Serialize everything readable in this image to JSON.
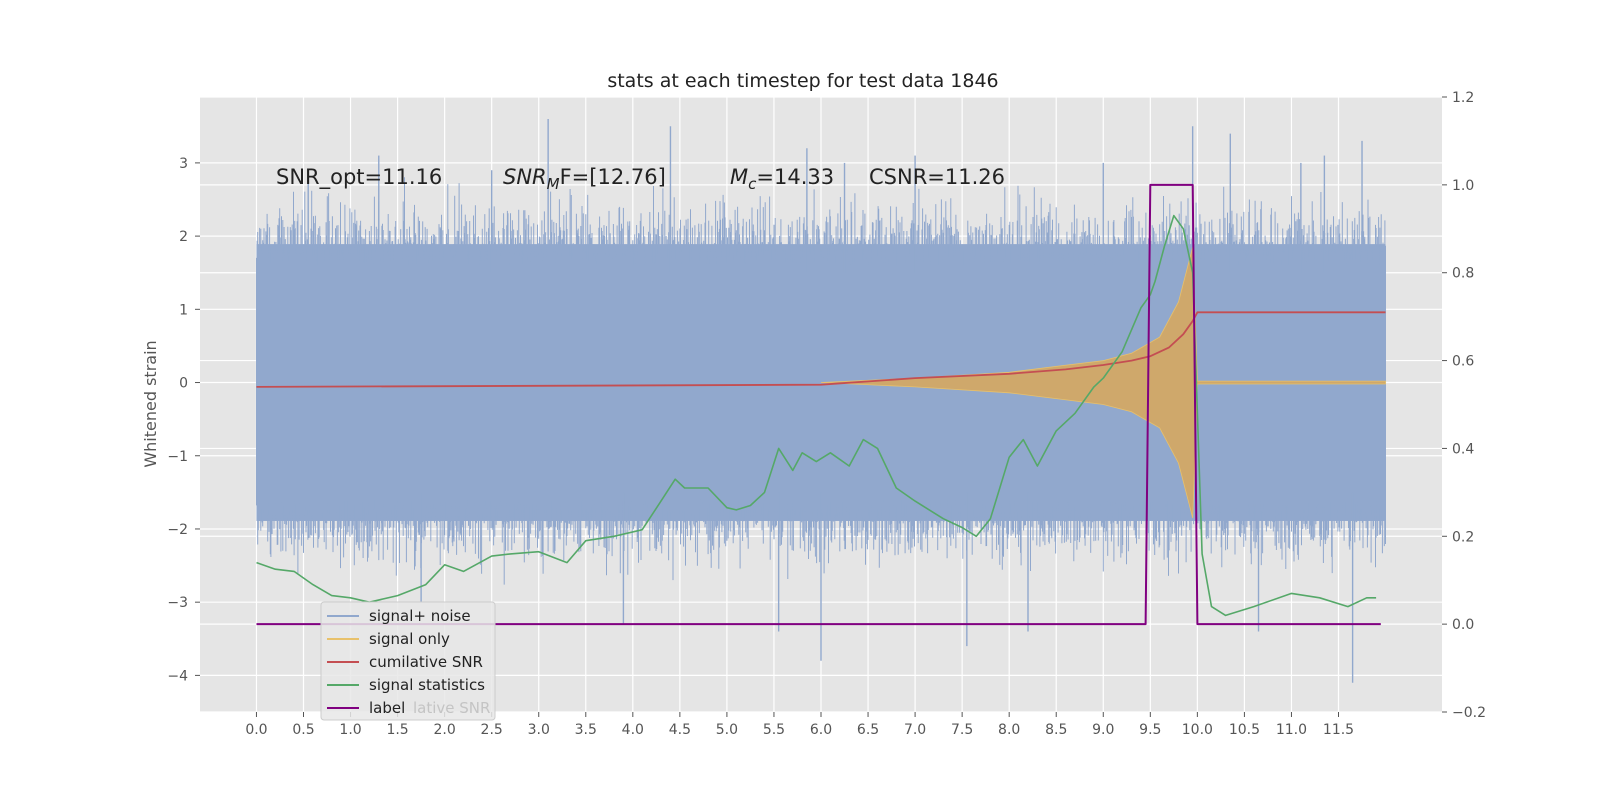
{
  "chart_data": {
    "type": "line",
    "title": "stats at each timestep for test data 1846",
    "ylabel": "Whitened strain",
    "xlabel": "",
    "xlim": [
      -0.6,
      12.6
    ],
    "ylim": [
      -4.5,
      3.9
    ],
    "y2lim": [
      -0.2,
      1.2
    ],
    "grid": true,
    "legend_position": "lower-left",
    "x_ticks": [
      "0.0",
      "0.5",
      "1.0",
      "1.5",
      "2.0",
      "2.5",
      "3.0",
      "3.5",
      "4.0",
      "4.5",
      "5.0",
      "5.5",
      "6.0",
      "6.5",
      "7.0",
      "7.5",
      "8.0",
      "8.5",
      "9.0",
      "9.5",
      "10.0",
      "10.5",
      "11.0",
      "11.5"
    ],
    "y_ticks": [
      "3",
      "2",
      "1",
      "0",
      "−1",
      "−2",
      "−3",
      "−4"
    ],
    "y2_ticks": [
      "1.2",
      "1.0",
      "0.8",
      "0.6",
      "0.4",
      "0.2",
      "0.0",
      "−0.2"
    ],
    "annotations": [
      {
        "text": "SNR_opt=11.16"
      },
      {
        "text": "SNR",
        "sub": "M",
        "after": "F=[12.76]"
      },
      {
        "text": "M",
        "sub": "c",
        "after": "=14.33"
      },
      {
        "text": "CSNR=11.26"
      }
    ],
    "series": [
      {
        "name": "signal+ noise",
        "color": "#91a8cd",
        "axis": "left",
        "style": "noise-band",
        "x_range": [
          0.0,
          12.0
        ],
        "typical_range": [
          -2.0,
          2.0
        ],
        "peaks": [
          {
            "x": 0.55,
            "y": 2.8
          },
          {
            "x": 1.3,
            "y": 3.1
          },
          {
            "x": 1.75,
            "y": -3.0
          },
          {
            "x": 2.5,
            "y": 2.9
          },
          {
            "x": 3.1,
            "y": 3.6
          },
          {
            "x": 3.9,
            "y": -3.3
          },
          {
            "x": 4.4,
            "y": 3.5
          },
          {
            "x": 5.55,
            "y": -3.4
          },
          {
            "x": 5.85,
            "y": 3.2
          },
          {
            "x": 6.0,
            "y": -3.8
          },
          {
            "x": 6.25,
            "y": 3.0
          },
          {
            "x": 7.0,
            "y": 3.1
          },
          {
            "x": 7.55,
            "y": -3.6
          },
          {
            "x": 8.2,
            "y": -3.4
          },
          {
            "x": 9.0,
            "y": 3.0
          },
          {
            "x": 9.95,
            "y": 3.5
          },
          {
            "x": 10.35,
            "y": 3.4
          },
          {
            "x": 10.65,
            "y": -3.4
          },
          {
            "x": 11.1,
            "y": 3.0
          },
          {
            "x": 11.35,
            "y": 3.1
          },
          {
            "x": 11.65,
            "y": -4.1
          },
          {
            "x": 11.75,
            "y": 3.3
          }
        ]
      },
      {
        "name": "signal only",
        "color": "#e8c16b",
        "axis": "left",
        "style": "chirp",
        "x": [
          6.0,
          7.0,
          8.0,
          8.5,
          9.0,
          9.3,
          9.6,
          9.8,
          9.9,
          9.95,
          10.0,
          12.0
        ],
        "amplitude": [
          0.0,
          0.06,
          0.14,
          0.22,
          0.3,
          0.4,
          0.62,
          1.1,
          1.6,
          1.85,
          0.02,
          0.02
        ]
      },
      {
        "name": "cumilative SNR",
        "color": "#c44e52",
        "axis": "right",
        "x": [
          0.0,
          6.0,
          7.0,
          8.0,
          8.6,
          9.0,
          9.3,
          9.5,
          9.7,
          9.85,
          9.95,
          10.0,
          12.0
        ],
        "values": [
          0.54,
          0.545,
          0.56,
          0.57,
          0.58,
          0.59,
          0.6,
          0.61,
          0.63,
          0.66,
          0.69,
          0.71,
          0.71
        ]
      },
      {
        "name": "signal statistics",
        "color": "#55a868",
        "axis": "right",
        "x": [
          0.0,
          0.2,
          0.4,
          0.6,
          0.8,
          1.0,
          1.2,
          1.5,
          1.8,
          2.0,
          2.2,
          2.5,
          2.7,
          3.0,
          3.3,
          3.5,
          3.8,
          4.1,
          4.3,
          4.45,
          4.55,
          4.65,
          4.8,
          5.0,
          5.1,
          5.25,
          5.4,
          5.55,
          5.7,
          5.8,
          5.95,
          6.1,
          6.3,
          6.45,
          6.6,
          6.8,
          7.0,
          7.3,
          7.5,
          7.65,
          7.8,
          8.0,
          8.15,
          8.3,
          8.5,
          8.7,
          8.9,
          9.0,
          9.2,
          9.4,
          9.5,
          9.55,
          9.65,
          9.75,
          9.85,
          9.95,
          10.05,
          10.15,
          10.3,
          10.6,
          11.0,
          11.3,
          11.6,
          11.8,
          11.9
        ],
        "values": [
          0.14,
          0.125,
          0.12,
          0.09,
          0.065,
          0.06,
          0.05,
          0.065,
          0.09,
          0.135,
          0.12,
          0.155,
          0.16,
          0.165,
          0.14,
          0.19,
          0.2,
          0.215,
          0.28,
          0.33,
          0.31,
          0.31,
          0.31,
          0.265,
          0.26,
          0.27,
          0.3,
          0.4,
          0.35,
          0.39,
          0.37,
          0.39,
          0.36,
          0.42,
          0.4,
          0.31,
          0.28,
          0.24,
          0.22,
          0.2,
          0.24,
          0.38,
          0.42,
          0.36,
          0.44,
          0.48,
          0.54,
          0.56,
          0.62,
          0.72,
          0.75,
          0.78,
          0.86,
          0.93,
          0.9,
          0.8,
          0.16,
          0.04,
          0.02,
          0.04,
          0.07,
          0.06,
          0.04,
          0.06,
          0.06
        ]
      },
      {
        "name": "label",
        "color": "#800080",
        "axis": "right",
        "x": [
          0.0,
          9.45,
          9.5,
          9.95,
          10.0,
          11.95
        ],
        "values": [
          0.0,
          0.0,
          1.0,
          1.0,
          0.0,
          0.0
        ]
      }
    ],
    "legend": [
      "signal+ noise",
      "signal only",
      "cumilative SNR",
      "signal statistics",
      "label"
    ],
    "legend_ghost_text": "lative SNR"
  }
}
